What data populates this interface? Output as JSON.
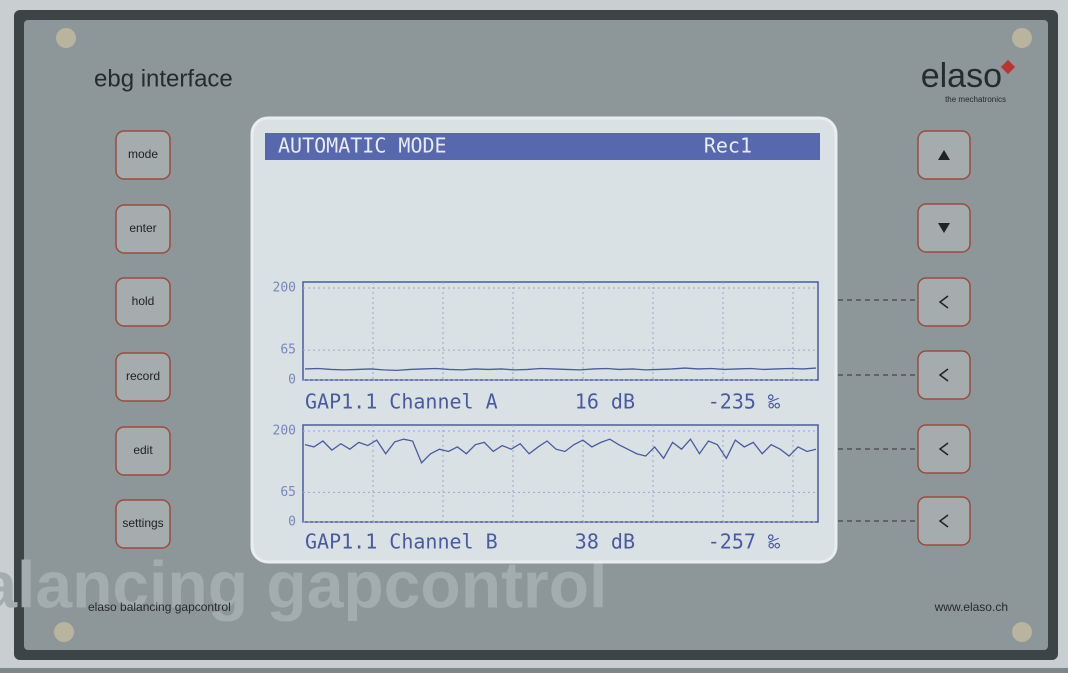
{
  "header": {
    "title": "ebg interface",
    "brand": "elaso",
    "tagline": "the mechatronics"
  },
  "left_buttons": [
    "mode",
    "enter",
    "hold",
    "record",
    "edit",
    "settings"
  ],
  "screen": {
    "title": "AUTOMATIC MODE",
    "recording": "Rec1",
    "plots": [
      {
        "ylim": [
          0,
          200
        ],
        "yticks": [
          0,
          65,
          200
        ],
        "name": "GAP1.1 Channel A",
        "level": "16 dB",
        "deviation": "-235 ‰",
        "values": [
          24,
          25,
          23,
          22,
          23,
          24,
          22,
          21,
          23,
          24,
          25,
          23,
          22,
          24,
          23,
          24,
          22,
          23,
          25,
          24,
          23,
          22,
          24,
          25,
          23,
          24,
          22,
          23,
          24,
          26,
          24,
          25,
          23,
          24,
          25,
          23,
          24,
          25,
          24,
          26
        ]
      },
      {
        "ylim": [
          0,
          200
        ],
        "yticks": [
          0,
          65,
          200
        ],
        "name": "GAP1.1 Channel B",
        "level": "38 dB",
        "deviation": "-257 ‰",
        "values": [
          170,
          165,
          178,
          158,
          172,
          160,
          175,
          168,
          180,
          150,
          176,
          182,
          178,
          130,
          150,
          160,
          155,
          165,
          150,
          170,
          175,
          155,
          168,
          160,
          172,
          150,
          165,
          178,
          160,
          155,
          170,
          180,
          165,
          175,
          182,
          170,
          160,
          150,
          145,
          165,
          140,
          175,
          160,
          182,
          150,
          178,
          170,
          140,
          180,
          165,
          175,
          150,
          170,
          160,
          145,
          165,
          155,
          160
        ]
      }
    ]
  },
  "footer": {
    "watermark": "balancing gapcontrol",
    "left": "elaso balancing gapcontrol",
    "right": "www.elaso.ch"
  }
}
